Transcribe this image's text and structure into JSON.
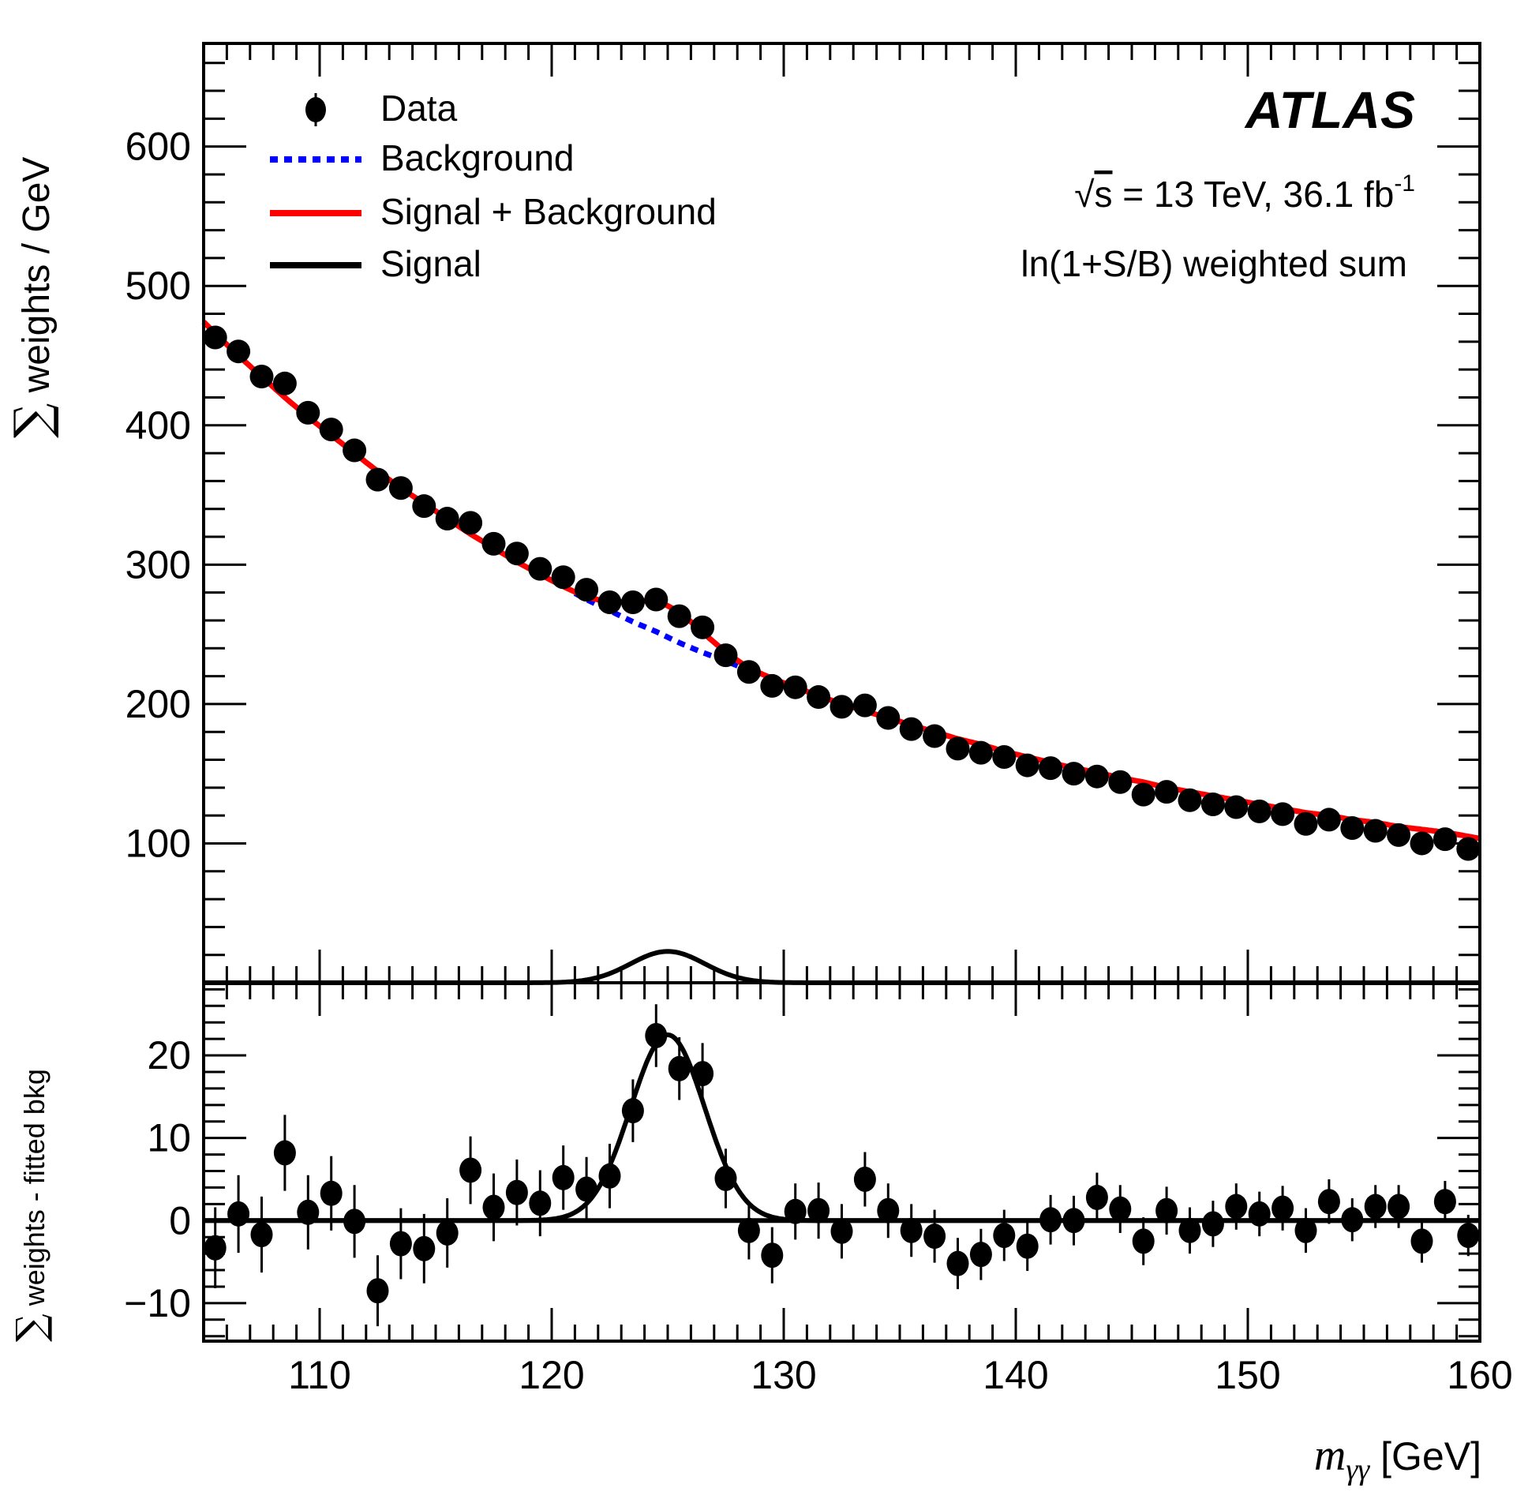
{
  "chart_data": [
    {
      "panel": "main",
      "type": "scatter",
      "title": "",
      "xlabel": "m_γγ [GeV]",
      "xlabel_main": "m",
      "xlabel_sub": "γγ",
      "xlabel_unit": " [GeV]",
      "ylabel": "∑ weights / GeV",
      "ylabel_sigma": "∑",
      "ylabel_text": " weights / GeV",
      "xlim": [
        105,
        160
      ],
      "ylim": [
        0,
        674
      ],
      "xticks": [
        110,
        120,
        130,
        140,
        150,
        160
      ],
      "yticks": [
        100,
        200,
        300,
        400,
        500,
        600
      ],
      "grid": false,
      "legend_placement": "top-left",
      "legend": [
        {
          "label": "Data",
          "style": "marker",
          "color": "#000000"
        },
        {
          "label": "Background",
          "style": "dotted",
          "color": "#0000ff"
        },
        {
          "label": "Signal + Background",
          "style": "solid",
          "color": "#ff0000"
        },
        {
          "label": "Signal",
          "style": "solid",
          "color": "#000000"
        }
      ],
      "annotations": {
        "experiment": "ATLAS",
        "energy_prefix": "√",
        "energy_s": "s",
        "energy_text": " = 13 TeV, 36.1 fb",
        "energy_sup": "-1",
        "method": "ln(1+S/B) weighted sum"
      },
      "x": [
        105.5,
        106.5,
        107.5,
        108.5,
        109.5,
        110.5,
        111.5,
        112.5,
        113.5,
        114.5,
        115.5,
        116.5,
        117.5,
        118.5,
        119.5,
        120.5,
        121.5,
        122.5,
        123.5,
        124.5,
        125.5,
        126.5,
        127.5,
        128.5,
        129.5,
        130.5,
        131.5,
        132.5,
        133.5,
        134.5,
        135.5,
        136.5,
        137.5,
        138.5,
        139.5,
        140.5,
        141.5,
        142.5,
        143.5,
        144.5,
        145.5,
        146.5,
        147.5,
        148.5,
        149.5,
        150.5,
        151.5,
        152.5,
        153.5,
        154.5,
        155.5,
        156.5,
        157.5,
        158.5,
        159.5
      ],
      "series": [
        {
          "name": "Data",
          "values": [
            463,
            453,
            435,
            430,
            409,
            397,
            382,
            361,
            355,
            342,
            333,
            330,
            315,
            308,
            297,
            291,
            282,
            273,
            273,
            275,
            263,
            255,
            235,
            223,
            213,
            212,
            205,
            198,
            199,
            190,
            182,
            177,
            168,
            165,
            162,
            156,
            154,
            150,
            148,
            144,
            135,
            137,
            131,
            128,
            126,
            123,
            121,
            114,
            117,
            111,
            109,
            106,
            100,
            103,
            96
          ]
        },
        {
          "name": "Background",
          "model": "exp_poly",
          "values_at_x": [
            466,
            450,
            435,
            420,
            406,
            393,
            380,
            367,
            355,
            344,
            333,
            322,
            312,
            302,
            293,
            284,
            275,
            267,
            259,
            252,
            244,
            237,
            231,
            224,
            218,
            212,
            206,
            200,
            195,
            190,
            185,
            180,
            175,
            171,
            166,
            162,
            158,
            154,
            151,
            147,
            144,
            140,
            137,
            134,
            131,
            128,
            125,
            122,
            120,
            117,
            115,
            112,
            110,
            108,
            105
          ]
        },
        {
          "name": "Signal + Background",
          "description": "Background + Signal"
        },
        {
          "name": "Signal",
          "peak": 22.5,
          "mean": 125.0,
          "sigma": 1.6
        }
      ]
    },
    {
      "panel": "residual",
      "type": "scatter",
      "ylabel": "∑ weights - fitted bkg",
      "ylabel_sigma": "∑",
      "ylabel_text": " weights - fitted bkg",
      "xlim": [
        105,
        160
      ],
      "ylim": [
        -14.6,
        28.8
      ],
      "yticks": [
        -10,
        0,
        10,
        20
      ],
      "ytick_labels": [
        "−10",
        "0",
        "10",
        "20"
      ],
      "grid": false,
      "x": [
        105.5,
        106.5,
        107.5,
        108.5,
        109.5,
        110.5,
        111.5,
        112.5,
        113.5,
        114.5,
        115.5,
        116.5,
        117.5,
        118.5,
        119.5,
        120.5,
        121.5,
        122.5,
        123.5,
        124.5,
        125.5,
        126.5,
        127.5,
        128.5,
        129.5,
        130.5,
        131.5,
        132.5,
        133.5,
        134.5,
        135.5,
        136.5,
        137.5,
        138.5,
        139.5,
        140.5,
        141.5,
        142.5,
        143.5,
        144.5,
        145.5,
        146.5,
        147.5,
        148.5,
        149.5,
        150.5,
        151.5,
        152.5,
        153.5,
        154.5,
        155.5,
        156.5,
        157.5,
        158.5,
        159.5
      ],
      "series": [
        {
          "name": "Data - fitted bkg",
          "values": [
            -3.3,
            0.8,
            -1.7,
            8.2,
            1.0,
            3.3,
            -0.1,
            -8.5,
            -2.8,
            -3.4,
            -1.5,
            6.1,
            1.6,
            3.4,
            2.1,
            5.2,
            3.8,
            5.4,
            13.3,
            22.4,
            18.4,
            17.8,
            5.1,
            -1.2,
            -4.2,
            1.1,
            1.2,
            -1.3,
            5.0,
            1.2,
            -1.2,
            -1.9,
            -5.2,
            -4.1,
            -1.8,
            -3.1,
            0.1,
            0.0,
            2.8,
            1.4,
            -2.5,
            1.2,
            -1.2,
            -0.4,
            1.7,
            0.8,
            1.5,
            -1.2,
            2.3,
            0.1,
            1.7,
            1.7,
            -2.5,
            2.3,
            -1.8
          ],
          "errors": [
            4.9,
            4.7,
            4.6,
            4.6,
            4.5,
            4.5,
            4.4,
            4.3,
            4.3,
            4.2,
            4.2,
            4.1,
            4.1,
            4.0,
            4.0,
            3.9,
            3.9,
            3.9,
            3.8,
            3.8,
            3.8,
            3.7,
            3.6,
            3.5,
            3.4,
            3.4,
            3.4,
            3.3,
            3.3,
            3.3,
            3.2,
            3.2,
            3.1,
            3.1,
            3.1,
            3.0,
            3.0,
            3.0,
            3.0,
            2.9,
            2.9,
            2.9,
            2.8,
            2.8,
            2.8,
            2.7,
            2.7,
            2.7,
            2.7,
            2.6,
            2.6,
            2.6,
            2.6,
            2.5,
            2.5
          ]
        },
        {
          "name": "Signal",
          "peak": 22.5,
          "mean": 125.0,
          "sigma": 1.6
        }
      ]
    }
  ]
}
